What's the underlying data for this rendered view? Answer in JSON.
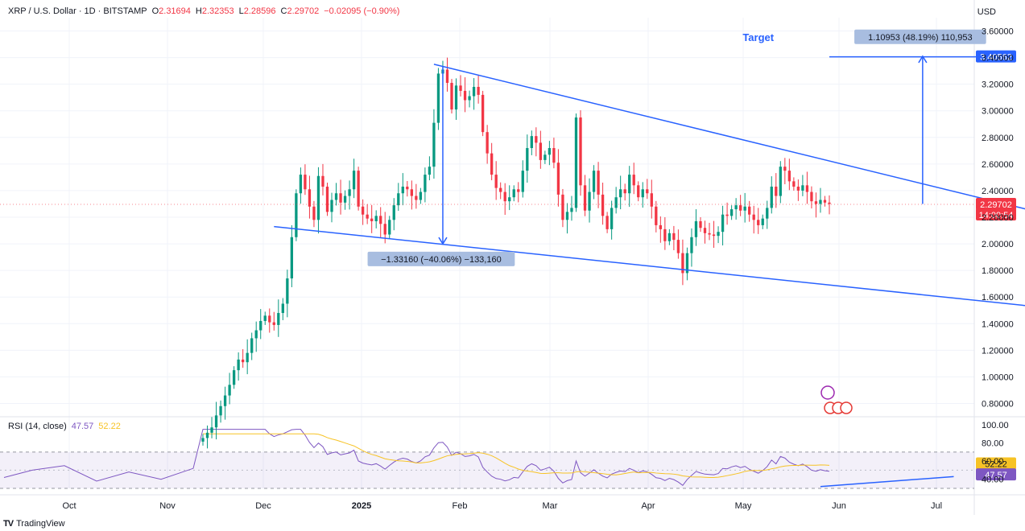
{
  "header": {
    "symbol": "XRP / U.S. Dollar · 1D · BITSTAMP",
    "open_label": "O",
    "open": "2.31694",
    "high_label": "H",
    "high": "2.32353",
    "low_label": "L",
    "low": "2.28596",
    "close_label": "C",
    "close": "2.29702",
    "change": "−0.02095 (−0.90%)"
  },
  "currency": "USD",
  "rsi": {
    "label": "RSI (14, close)",
    "value": "47.57",
    "ma": "52.22"
  },
  "footer": {
    "brand": "TradingView",
    "logo": "TV"
  },
  "colors": {
    "up": "#089981",
    "down": "#f23645",
    "line": "#2962ff",
    "rsi": "#7e57c2",
    "rsi_ma": "#f7c325"
  },
  "chart_data": {
    "type": "candlestick",
    "price_axis": {
      "range": [
        0.7,
        3.7
      ],
      "ticks": [
        "3.60000",
        "3.40000",
        "3.20000",
        "3.00000",
        "2.80000",
        "2.60000",
        "2.40000",
        "2.20000",
        "2.00000",
        "1.80000",
        "1.60000",
        "1.40000",
        "1.20000",
        "1.00000",
        "0.80000"
      ]
    },
    "rsi_axis": {
      "range": [
        30,
        100
      ],
      "ticks": [
        "100.00",
        "80.00",
        "60.00",
        "40.00"
      ]
    },
    "x_ticks": [
      "Oct",
      "Nov",
      "Dec",
      "2025",
      "Feb",
      "Mar",
      "Apr",
      "May",
      "Jun",
      "Jul"
    ],
    "last_price": "2.29702",
    "countdown": "14:00:54",
    "rsi_last": "47.57",
    "rsi_ma_last": "52.22",
    "target_price_label": "3.40562",
    "target_text": "Target",
    "measure_up": "1.10953 (48.19%) 110,953",
    "measure_down": "−1.33160 (−40.06%) −133,160",
    "closes": [
      0.54,
      0.58,
      0.62,
      0.71,
      0.78,
      0.86,
      0.94,
      1.05,
      1.13,
      1.11,
      1.18,
      1.29,
      1.35,
      1.42,
      1.46,
      1.41,
      1.39,
      1.48,
      1.55,
      1.74,
      2.05,
      2.38,
      2.52,
      2.41,
      2.28,
      2.18,
      2.51,
      2.43,
      2.24,
      2.33,
      2.38,
      2.31,
      2.36,
      2.41,
      2.55,
      2.28,
      2.22,
      2.19,
      2.17,
      2.21,
      2.15,
      2.07,
      2.18,
      2.29,
      2.38,
      2.43,
      2.41,
      2.36,
      2.33,
      2.39,
      2.52,
      2.58,
      2.91,
      3.28,
      3.31,
      3.21,
      3.01,
      3.19,
      3.15,
      3.08,
      3.11,
      3.18,
      3.12,
      2.84,
      2.68,
      2.52,
      2.42,
      2.39,
      2.32,
      2.35,
      2.41,
      2.39,
      2.55,
      2.72,
      2.81,
      2.76,
      2.63,
      2.67,
      2.72,
      2.61,
      2.37,
      2.18,
      2.24,
      2.27,
      2.95,
      2.44,
      2.25,
      2.39,
      2.55,
      2.37,
      2.21,
      2.11,
      2.27,
      2.35,
      2.41,
      2.38,
      2.52,
      2.44,
      2.35,
      2.41,
      2.38,
      2.28,
      2.14,
      2.11,
      2.02,
      2.08,
      2.03,
      1.93,
      1.78,
      1.93,
      2.05,
      2.17,
      2.12,
      2.08,
      2.07,
      2.06,
      2.09,
      2.22,
      2.21,
      2.26,
      2.29,
      2.25,
      2.28,
      2.22,
      2.18,
      2.14,
      2.19,
      2.27,
      2.43,
      2.36,
      2.58,
      2.55,
      2.47,
      2.43,
      2.4,
      2.44,
      2.39,
      2.32,
      2.3,
      2.33,
      2.31,
      2.3
    ]
  }
}
